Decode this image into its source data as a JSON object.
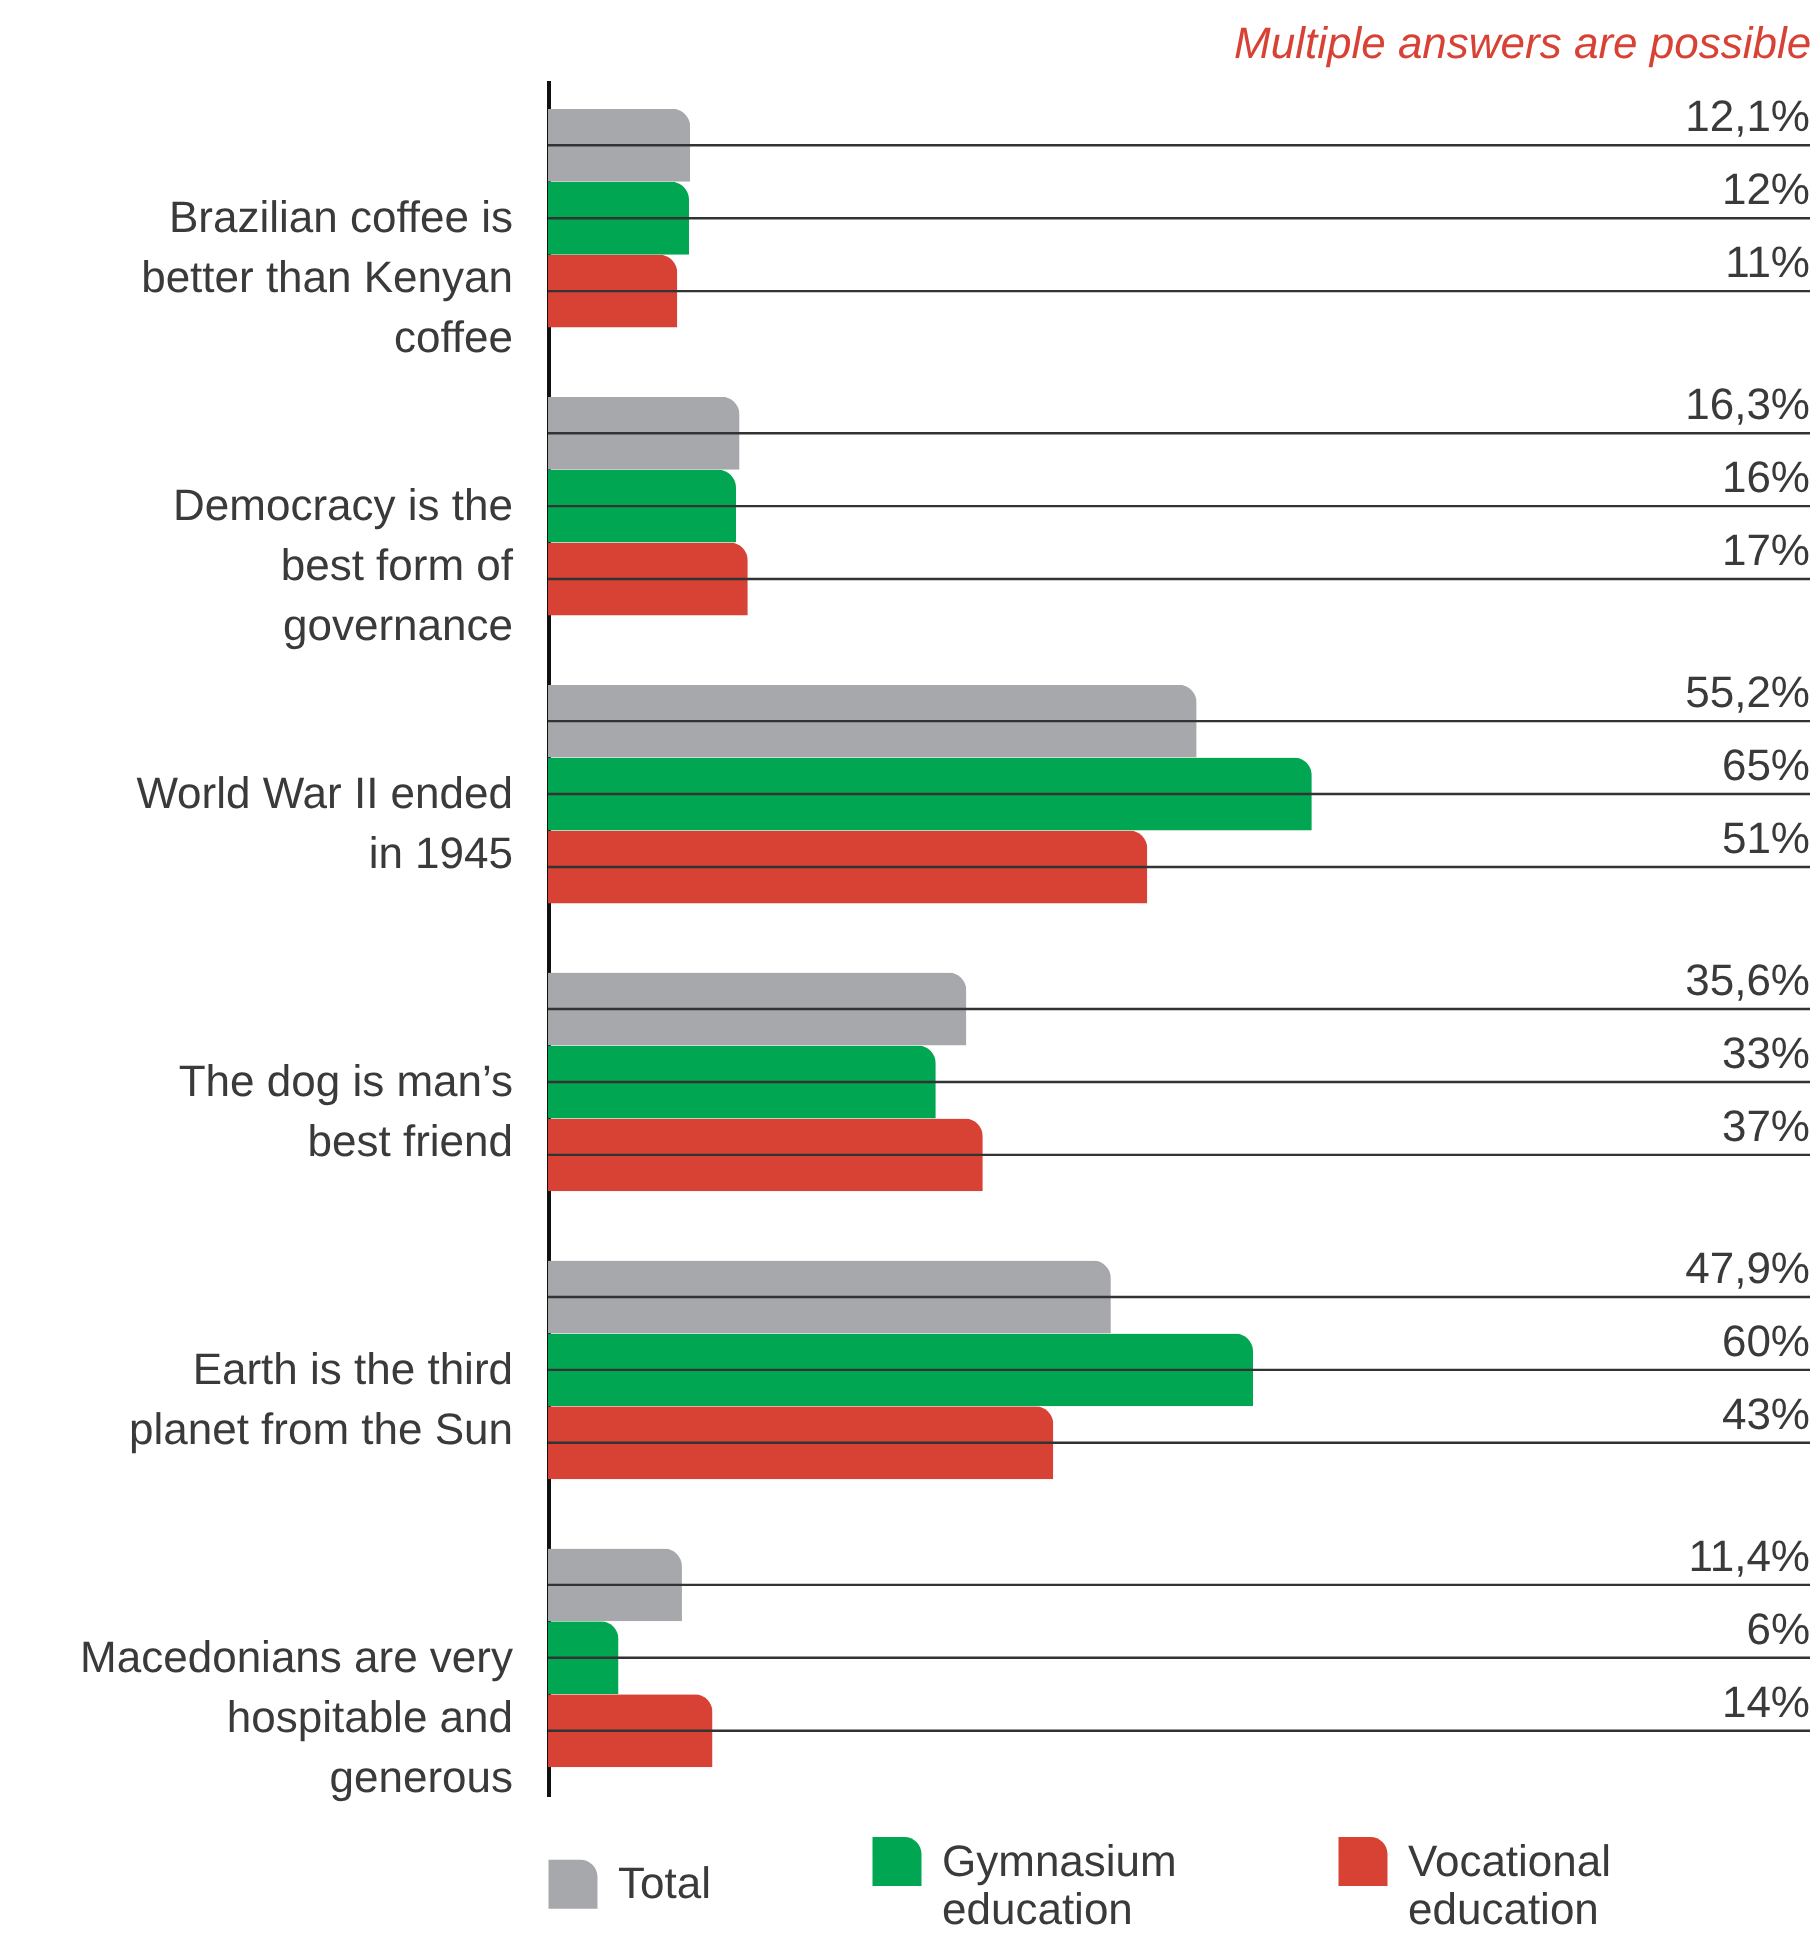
{
  "chart_data": {
    "type": "bar",
    "orientation": "horizontal",
    "categories": [
      "Brazilian coffee is better than Kenyan coffee",
      "Democracy is the best form of governance",
      "World War II ended in 1945",
      "The dog is man’s best friend",
      "Earth is the third planet from the Sun",
      "Macedonians are very hospitable and generous"
    ],
    "series": [
      {
        "name": "Total",
        "color": "#a7a8ab",
        "values": [
          12.1,
          16.3,
          55.2,
          35.6,
          47.9,
          11.4
        ],
        "value_labels": [
          "12,1%",
          "16,3%",
          "55,2%",
          "35,6%",
          "47,9%",
          "11,4%"
        ]
      },
      {
        "name": "Gymnasium education",
        "color": "#00a651",
        "values": [
          12,
          16,
          65,
          33,
          60,
          6
        ],
        "value_labels": [
          "12%",
          "16%",
          "65%",
          "33%",
          "60%",
          "6%"
        ]
      },
      {
        "name": "Vocational education",
        "color": "#d84235",
        "values": [
          11,
          17,
          51,
          37,
          43,
          14
        ],
        "value_labels": [
          "11%",
          "17%",
          "51%",
          "37%",
          "43%",
          "14%"
        ]
      }
    ],
    "xlim": [
      0,
      107.4
    ],
    "annotations": [
      "Multiple answers are possible"
    ],
    "legend": "bottom",
    "tick_labels": "y"
  }
}
